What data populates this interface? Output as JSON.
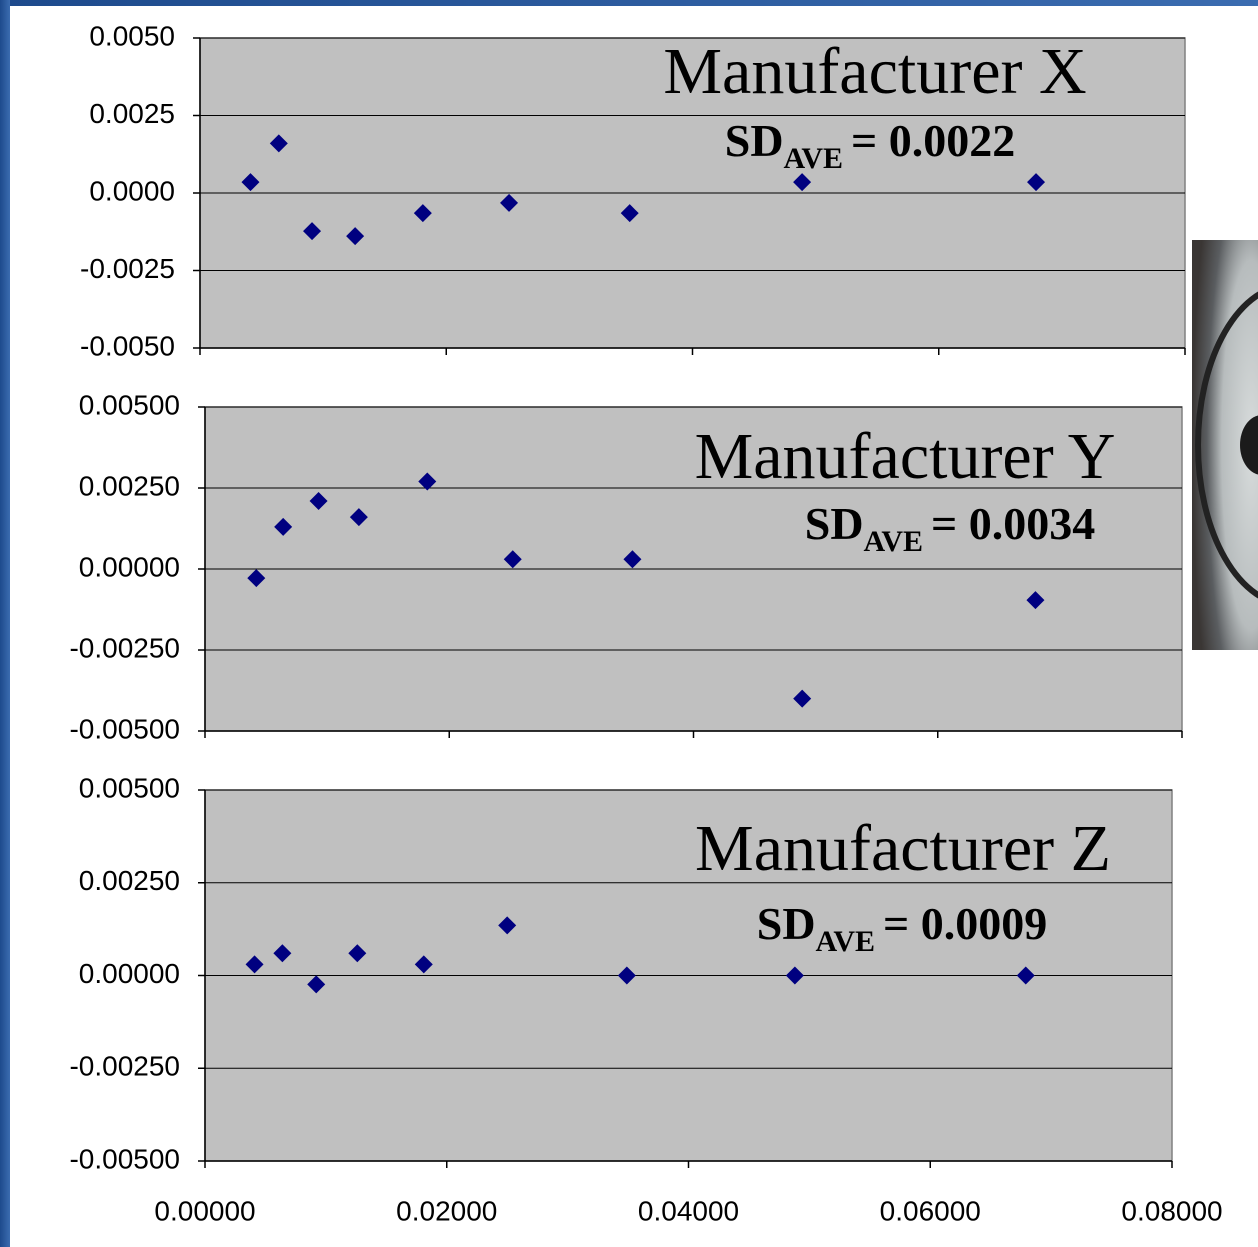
{
  "chart_data": [
    {
      "type": "scatter",
      "annotation": {
        "title": "Manufacturer X",
        "stat": "SD",
        "subscript": "AVE",
        "value_text": "= 0.0022"
      },
      "series": [
        {
          "color": "#000080",
          "x": [
            0.0041,
            0.0064,
            0.0091,
            0.0126,
            0.0181,
            0.0251,
            0.0349,
            0.0489,
            0.0679
          ],
          "values": [
            0.00035,
            0.0016,
            -0.00123,
            -0.00139,
            -0.00065,
            -0.00032,
            -0.00065,
            0.00035,
            0.00035
          ]
        }
      ],
      "xlim": [
        0,
        0.08
      ],
      "xticks": [
        0,
        0.02,
        0.04,
        0.06,
        0.08
      ],
      "ylim": [
        -0.005,
        0.005
      ],
      "yticks": [
        {
          "value": -0.005,
          "label": "-0.0050"
        },
        {
          "value": -0.0025,
          "label": "-0.0025"
        },
        {
          "value": 0,
          "label": "0.0000"
        },
        {
          "value": 0.0025,
          "label": "0.0025"
        },
        {
          "value": 0.005,
          "label": "0.0050"
        }
      ],
      "grid": true
    },
    {
      "type": "scatter",
      "annotation": {
        "title": "Manufacturer Y",
        "stat": "SD",
        "subscript": "AVE",
        "value_text": "= 0.0034"
      },
      "series": [
        {
          "color": "#000080",
          "x": [
            0.0042,
            0.0064,
            0.0093,
            0.0126,
            0.0182,
            0.0252,
            0.035,
            0.0489,
            0.068
          ],
          "values": [
            -0.00028,
            0.0013,
            0.0021,
            0.0016,
            0.0027,
            0.0003,
            0.0003,
            -0.004,
            -0.00096
          ]
        }
      ],
      "xlim": [
        0,
        0.08
      ],
      "xticks": [
        0,
        0.02,
        0.04,
        0.06,
        0.08
      ],
      "ylim": [
        -0.005,
        0.005
      ],
      "yticks": [
        {
          "value": -0.005,
          "label": "-0.00500"
        },
        {
          "value": -0.0025,
          "label": "-0.00250"
        },
        {
          "value": 0,
          "label": "0.00000"
        },
        {
          "value": 0.0025,
          "label": "0.00250"
        },
        {
          "value": 0.005,
          "label": "0.00500"
        }
      ],
      "grid": true
    },
    {
      "type": "scatter",
      "annotation": {
        "title": "Manufacturer Z",
        "stat": "SD",
        "subscript": "AVE",
        "value_text": "= 0.0009"
      },
      "series": [
        {
          "color": "#000080",
          "x": [
            0.0041,
            0.0064,
            0.0092,
            0.0126,
            0.0181,
            0.025,
            0.0349,
            0.0488,
            0.0679
          ],
          "values": [
            0.0003,
            0.0006,
            -0.00024,
            0.0006,
            0.0003,
            0.00135,
            0,
            0,
            0
          ]
        }
      ],
      "xlim": [
        0,
        0.08
      ],
      "xticks": [
        {
          "value": 0,
          "label": "0.00000"
        },
        {
          "value": 0.02,
          "label": "0.02000"
        },
        {
          "value": 0.04,
          "label": "0.04000"
        },
        {
          "value": 0.06,
          "label": "0.06000"
        },
        {
          "value": 0.08,
          "label": "0.08000"
        }
      ],
      "ylim": [
        -0.005,
        0.005
      ],
      "yticks": [
        {
          "value": -0.005,
          "label": "-0.00500"
        },
        {
          "value": -0.0025,
          "label": "-0.00250"
        },
        {
          "value": 0,
          "label": "0.00000"
        },
        {
          "value": 0.0025,
          "label": "0.00250"
        },
        {
          "value": 0.005,
          "label": "0.00500"
        }
      ],
      "grid": true
    }
  ]
}
